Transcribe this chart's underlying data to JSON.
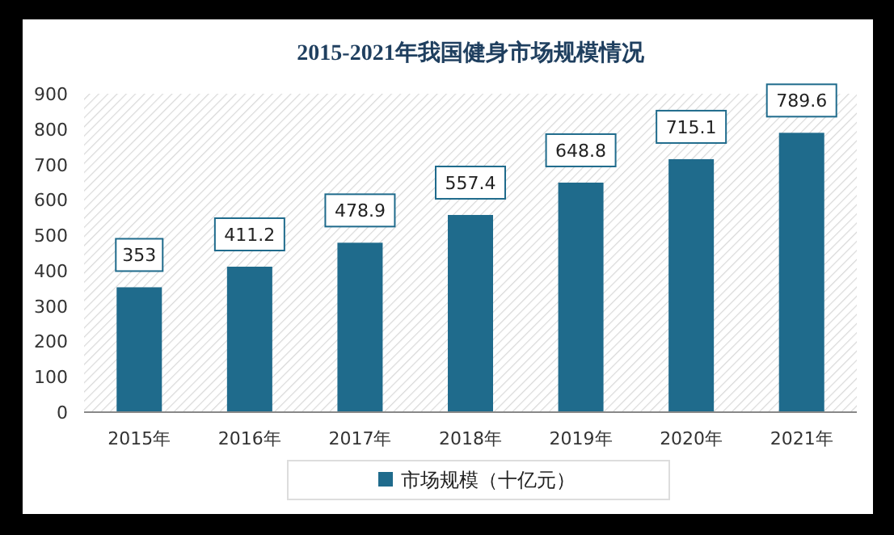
{
  "chart_data": {
    "type": "bar",
    "title": "2015-2021年我国健身市场规模情况",
    "categories": [
      "2015年",
      "2016年",
      "2017年",
      "2018年",
      "2019年",
      "2020年",
      "2021年"
    ],
    "series": [
      {
        "name": "市场规模（十亿元）",
        "color": "#1f6b8c",
        "values": [
          353,
          411.2,
          478.9,
          557.4,
          648.8,
          715.1,
          789.6
        ]
      }
    ],
    "ylim": [
      0,
      900
    ],
    "yticks": [
      0,
      100,
      200,
      300,
      400,
      500,
      600,
      700,
      800,
      900
    ],
    "data_labels": true,
    "grid": false,
    "legend": "bottom"
  }
}
